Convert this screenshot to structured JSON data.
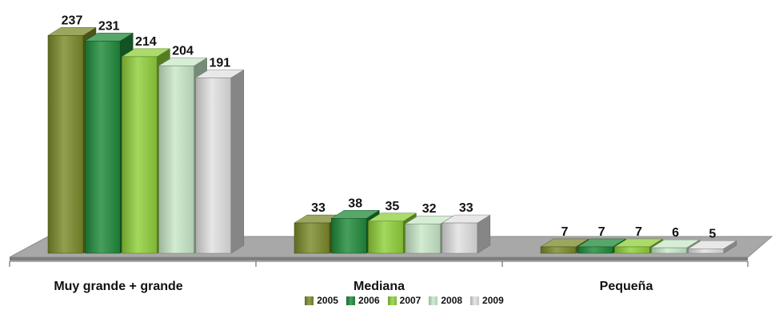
{
  "chart_data": {
    "type": "bar",
    "style": "3d-clustered-column",
    "categories": [
      "Muy grande + grande",
      "Mediana",
      "Pequeña"
    ],
    "series": [
      {
        "name": "2005",
        "values": [
          237,
          33,
          7
        ],
        "color": "#7a8a2a"
      },
      {
        "name": "2006",
        "values": [
          231,
          38,
          7
        ],
        "color": "#1f8a3a"
      },
      {
        "name": "2007",
        "values": [
          214,
          35,
          7
        ],
        "color": "#8fcf3a"
      },
      {
        "name": "2008",
        "values": [
          204,
          32,
          6
        ],
        "color": "#c8e8c8"
      },
      {
        "name": "2009",
        "values": [
          191,
          33,
          5
        ],
        "color": "#e0e0e0"
      }
    ],
    "data_labels": true,
    "grid": false,
    "legend_position": "bottom",
    "floor_color": "#a8a8a8"
  }
}
